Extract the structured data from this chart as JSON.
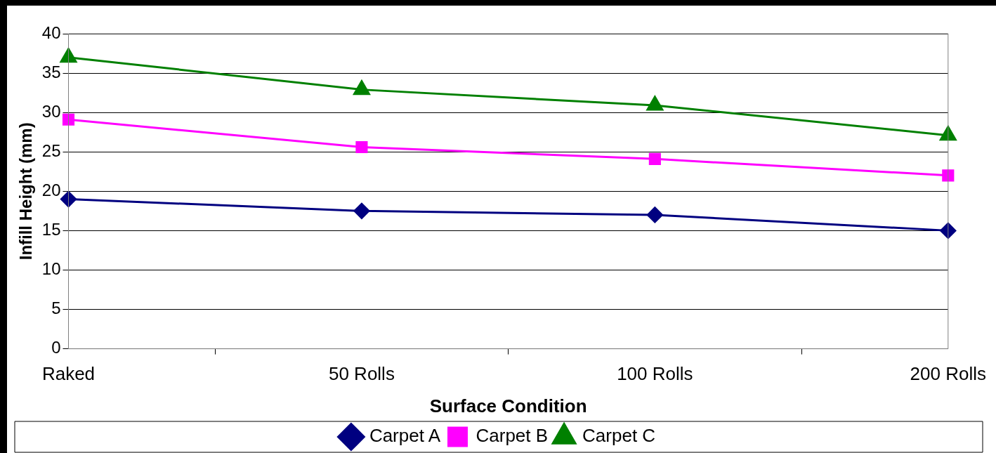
{
  "chart_data": {
    "type": "line",
    "xlabel": "Surface Condition",
    "ylabel": "Infill Height (mm)",
    "categories": [
      "Raked",
      "50 Rolls",
      "100 Rolls",
      "200 Rolls"
    ],
    "series": [
      {
        "name": "Carpet A",
        "color": "#000080",
        "marker": "diamond",
        "values": [
          19,
          17.5,
          17,
          15
        ]
      },
      {
        "name": "Carpet B",
        "color": "#ff00ff",
        "marker": "square",
        "values": [
          29.1,
          25.6,
          24.1,
          22
        ]
      },
      {
        "name": "Carpet C",
        "color": "#008000",
        "marker": "triangle",
        "values": [
          37,
          32.9,
          30.9,
          27.1
        ]
      }
    ],
    "ylim": [
      0,
      40
    ],
    "yticks": [
      0,
      5,
      10,
      15,
      20,
      25,
      30,
      35,
      40
    ],
    "grid": "y",
    "legend": "bottom",
    "line_style": "solid"
  }
}
